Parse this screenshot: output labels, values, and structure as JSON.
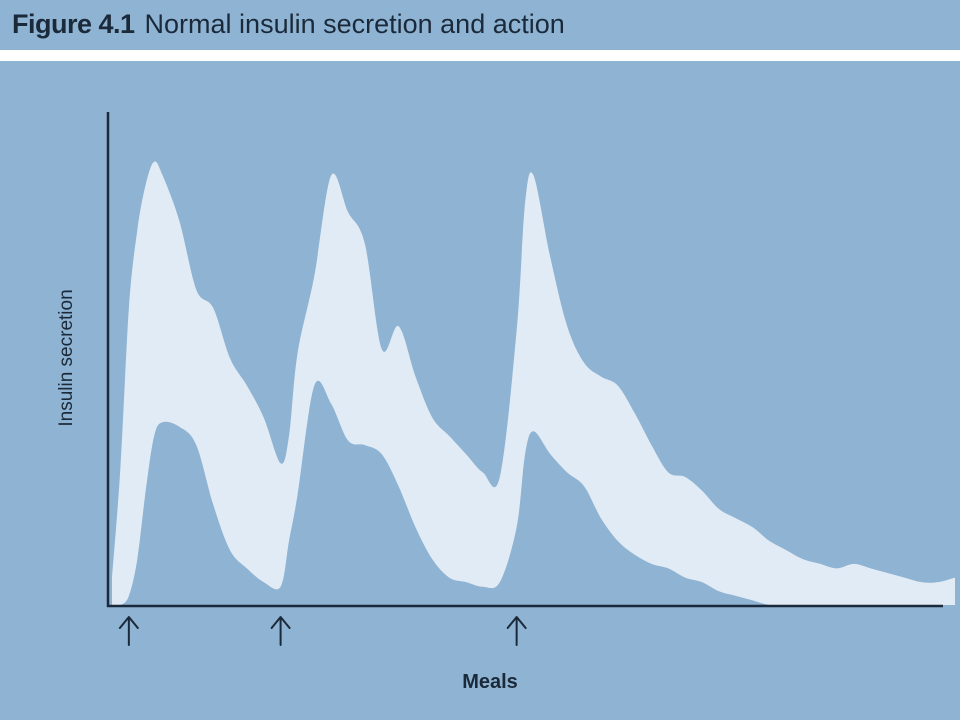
{
  "figure": {
    "number": "Figure 4.1",
    "title": "Normal insulin secretion and action"
  },
  "chart_data": {
    "type": "area",
    "ylabel": "Insulin secretion",
    "xlabel": "Meals",
    "xlim": [
      0,
      100
    ],
    "ylim": [
      0,
      100
    ],
    "meal_markers_x": [
      2,
      20,
      48
    ],
    "series": [
      {
        "x": [
          0,
          1,
          2,
          3,
          4,
          5,
          6,
          8,
          10,
          12,
          14,
          16,
          18,
          20,
          21,
          22,
          24,
          26,
          28,
          30,
          32,
          34,
          36,
          38,
          40,
          42,
          44,
          46,
          48,
          49,
          50,
          52,
          54,
          56,
          58,
          60,
          62,
          64,
          66,
          68,
          70,
          72,
          74,
          76,
          78,
          80,
          82,
          84,
          86,
          88,
          90,
          92,
          94,
          96,
          98,
          100
        ],
        "upper": [
          6,
          30,
          65,
          82,
          92,
          97,
          94,
          84,
          69,
          65,
          54,
          48,
          41,
          31,
          37,
          55,
          72,
          94,
          86,
          79,
          56,
          61,
          50,
          41,
          37,
          33,
          29,
          28,
          60,
          88,
          94,
          76,
          61,
          53,
          50,
          48,
          42,
          35,
          29,
          28,
          25,
          21,
          19,
          17,
          14,
          12,
          10,
          9,
          8,
          9,
          8,
          7,
          6,
          5,
          5,
          6
        ],
        "lower": [
          0,
          0,
          2,
          10,
          25,
          37,
          40,
          39,
          35,
          22,
          12,
          8,
          5,
          4,
          14,
          24,
          48,
          44,
          36,
          35,
          33,
          26,
          17,
          10,
          6,
          5,
          4,
          5,
          17,
          33,
          38,
          33,
          29,
          26,
          19,
          14,
          11,
          9,
          8,
          6,
          5,
          3,
          2,
          1,
          0,
          0,
          0,
          0,
          0,
          0,
          0,
          0,
          0,
          0,
          0,
          0
        ]
      }
    ],
    "colors": {
      "band": "#e1ebf5",
      "background": "#8fb3d2",
      "axis": "#1b2a3a"
    }
  }
}
